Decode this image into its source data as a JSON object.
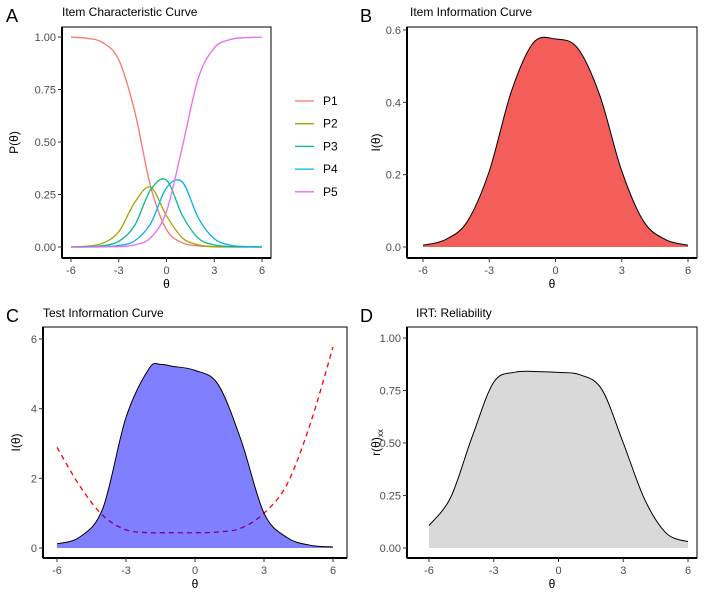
{
  "chart_data": [
    {
      "panel": "A",
      "type": "line",
      "title": "Item Characteristic Curve",
      "xlabel": "θ",
      "ylabel": "P(θ)",
      "xlim": [
        -6,
        6
      ],
      "ylim": [
        0,
        1
      ],
      "xticks": [
        "-6",
        "-3",
        "0",
        "3",
        "6"
      ],
      "yticks": [
        "0.00",
        "0.25",
        "0.50",
        "0.75",
        "1.00"
      ],
      "legend_position": "right",
      "x": [
        -6,
        -5,
        -4,
        -3,
        -2,
        -1,
        0,
        1,
        2,
        3,
        4,
        5,
        6
      ],
      "series": [
        {
          "name": "P1",
          "color": "#F8766D",
          "values": [
            0.999,
            0.994,
            0.973,
            0.891,
            0.646,
            0.289,
            0.083,
            0.02,
            0.005,
            0.001,
            0.0,
            0.0,
            0.0
          ]
        },
        {
          "name": "P2",
          "color": "#A3A500",
          "values": [
            0.001,
            0.004,
            0.018,
            0.073,
            0.212,
            0.285,
            0.148,
            0.043,
            0.01,
            0.002,
            0.001,
            0.0,
            0.0
          ]
        },
        {
          "name": "P3",
          "color": "#00BF7D",
          "values": [
            0.0,
            0.001,
            0.006,
            0.027,
            0.103,
            0.272,
            0.318,
            0.15,
            0.042,
            0.01,
            0.002,
            0.001,
            0.0
          ]
        },
        {
          "name": "P4",
          "color": "#00B0F6",
          "values": [
            0.0,
            0.0,
            0.002,
            0.007,
            0.029,
            0.111,
            0.282,
            0.309,
            0.139,
            0.039,
            0.009,
            0.002,
            0.001
          ]
        },
        {
          "name": "P5",
          "color": "#E76BF3",
          "values": [
            0.0,
            0.0,
            0.001,
            0.002,
            0.01,
            0.044,
            0.169,
            0.478,
            0.804,
            0.948,
            0.988,
            0.997,
            0.999
          ]
        }
      ]
    },
    {
      "panel": "B",
      "type": "area",
      "title": "Item Information Curve",
      "xlabel": "θ",
      "ylabel": "I(θ)",
      "xlim": [
        -6,
        6
      ],
      "ylim": [
        0,
        0.6
      ],
      "xticks": [
        "-6",
        "-3",
        "0",
        "3",
        "6"
      ],
      "yticks": [
        "0.0",
        "0.2",
        "0.4",
        "0.6"
      ],
      "fill": "#F35E5A",
      "x": [
        -6,
        -5,
        -4,
        -3,
        -2,
        -1,
        0,
        1,
        2,
        3,
        4,
        5,
        6
      ],
      "values": [
        0.005,
        0.02,
        0.07,
        0.21,
        0.43,
        0.565,
        0.575,
        0.55,
        0.42,
        0.21,
        0.07,
        0.02,
        0.005
      ]
    },
    {
      "panel": "C",
      "type": "area",
      "title": "Test Information Curve",
      "xlabel": "θ",
      "ylabel": "I(θ)",
      "xlim": [
        -6,
        6
      ],
      "ylim": [
        0,
        6
      ],
      "xticks": [
        "-6",
        "-3",
        "0",
        "3",
        "6"
      ],
      "yticks": [
        "0",
        "2",
        "4",
        "6"
      ],
      "fill": "#8080FF",
      "x": [
        -6,
        -5,
        -4,
        -3,
        -2,
        -1.5,
        -1,
        0,
        1,
        2,
        3,
        4,
        5,
        6
      ],
      "values": [
        0.12,
        0.32,
        1.15,
        3.75,
        5.15,
        5.27,
        5.22,
        5.1,
        4.7,
        3.1,
        1.0,
        0.3,
        0.08,
        0.03
      ],
      "dashed_series": {
        "color": "#FF0000",
        "values": [
          2.89,
          1.77,
          0.93,
          0.52,
          0.44,
          0.44,
          0.44,
          0.44,
          0.46,
          0.57,
          1.0,
          1.83,
          3.54,
          5.77
        ]
      }
    },
    {
      "panel": "D",
      "type": "area",
      "title": "IRT: Reliability",
      "xlabel": "θ",
      "ylabel": "r(θ)",
      "ylabel_sub": "xx",
      "xlim": [
        -6,
        6
      ],
      "ylim": [
        0,
        1
      ],
      "xticks": [
        "-6",
        "-3",
        "0",
        "3",
        "6"
      ],
      "yticks": [
        "0.00",
        "0.25",
        "0.50",
        "0.75",
        "1.00"
      ],
      "fill": "#D9D9D9",
      "x": [
        -6,
        -5,
        -4,
        -3,
        -2,
        -1,
        0,
        1,
        2,
        3,
        4,
        5,
        6
      ],
      "values": [
        0.107,
        0.24,
        0.53,
        0.79,
        0.837,
        0.84,
        0.836,
        0.825,
        0.756,
        0.5,
        0.23,
        0.07,
        0.03
      ]
    }
  ]
}
